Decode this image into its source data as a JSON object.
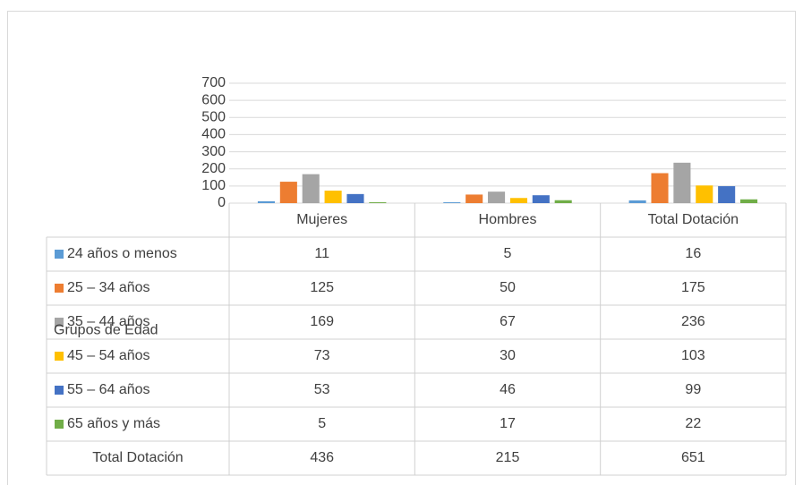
{
  "chart_data": {
    "type": "bar",
    "categories": [
      "Mujeres",
      "Hombres",
      "Total Dotación"
    ],
    "series": [
      {
        "name": "24 años o menos",
        "color": "#5b9bd5",
        "values": [
          11,
          5,
          16
        ]
      },
      {
        "name": "25 – 34 años",
        "color": "#ed7d31",
        "values": [
          125,
          50,
          175
        ]
      },
      {
        "name": "35 – 44 años",
        "color": "#a5a5a5",
        "values": [
          169,
          67,
          236
        ]
      },
      {
        "name": "45 – 54 años",
        "color": "#ffc000",
        "values": [
          73,
          30,
          103
        ]
      },
      {
        "name": "55 – 64 años",
        "color": "#4472c4",
        "values": [
          53,
          46,
          99
        ]
      },
      {
        "name": "65 años y más",
        "color": "#70ad47",
        "values": [
          5,
          17,
          22
        ]
      }
    ],
    "total_row": {
      "label": "Total Dotación",
      "values": [
        436,
        215,
        651
      ]
    },
    "axis_title": "Grupos de Edad",
    "ylim": [
      0,
      700
    ],
    "yticks": [
      0,
      100,
      200,
      300,
      400,
      500,
      600,
      700
    ],
    "grid": true
  }
}
